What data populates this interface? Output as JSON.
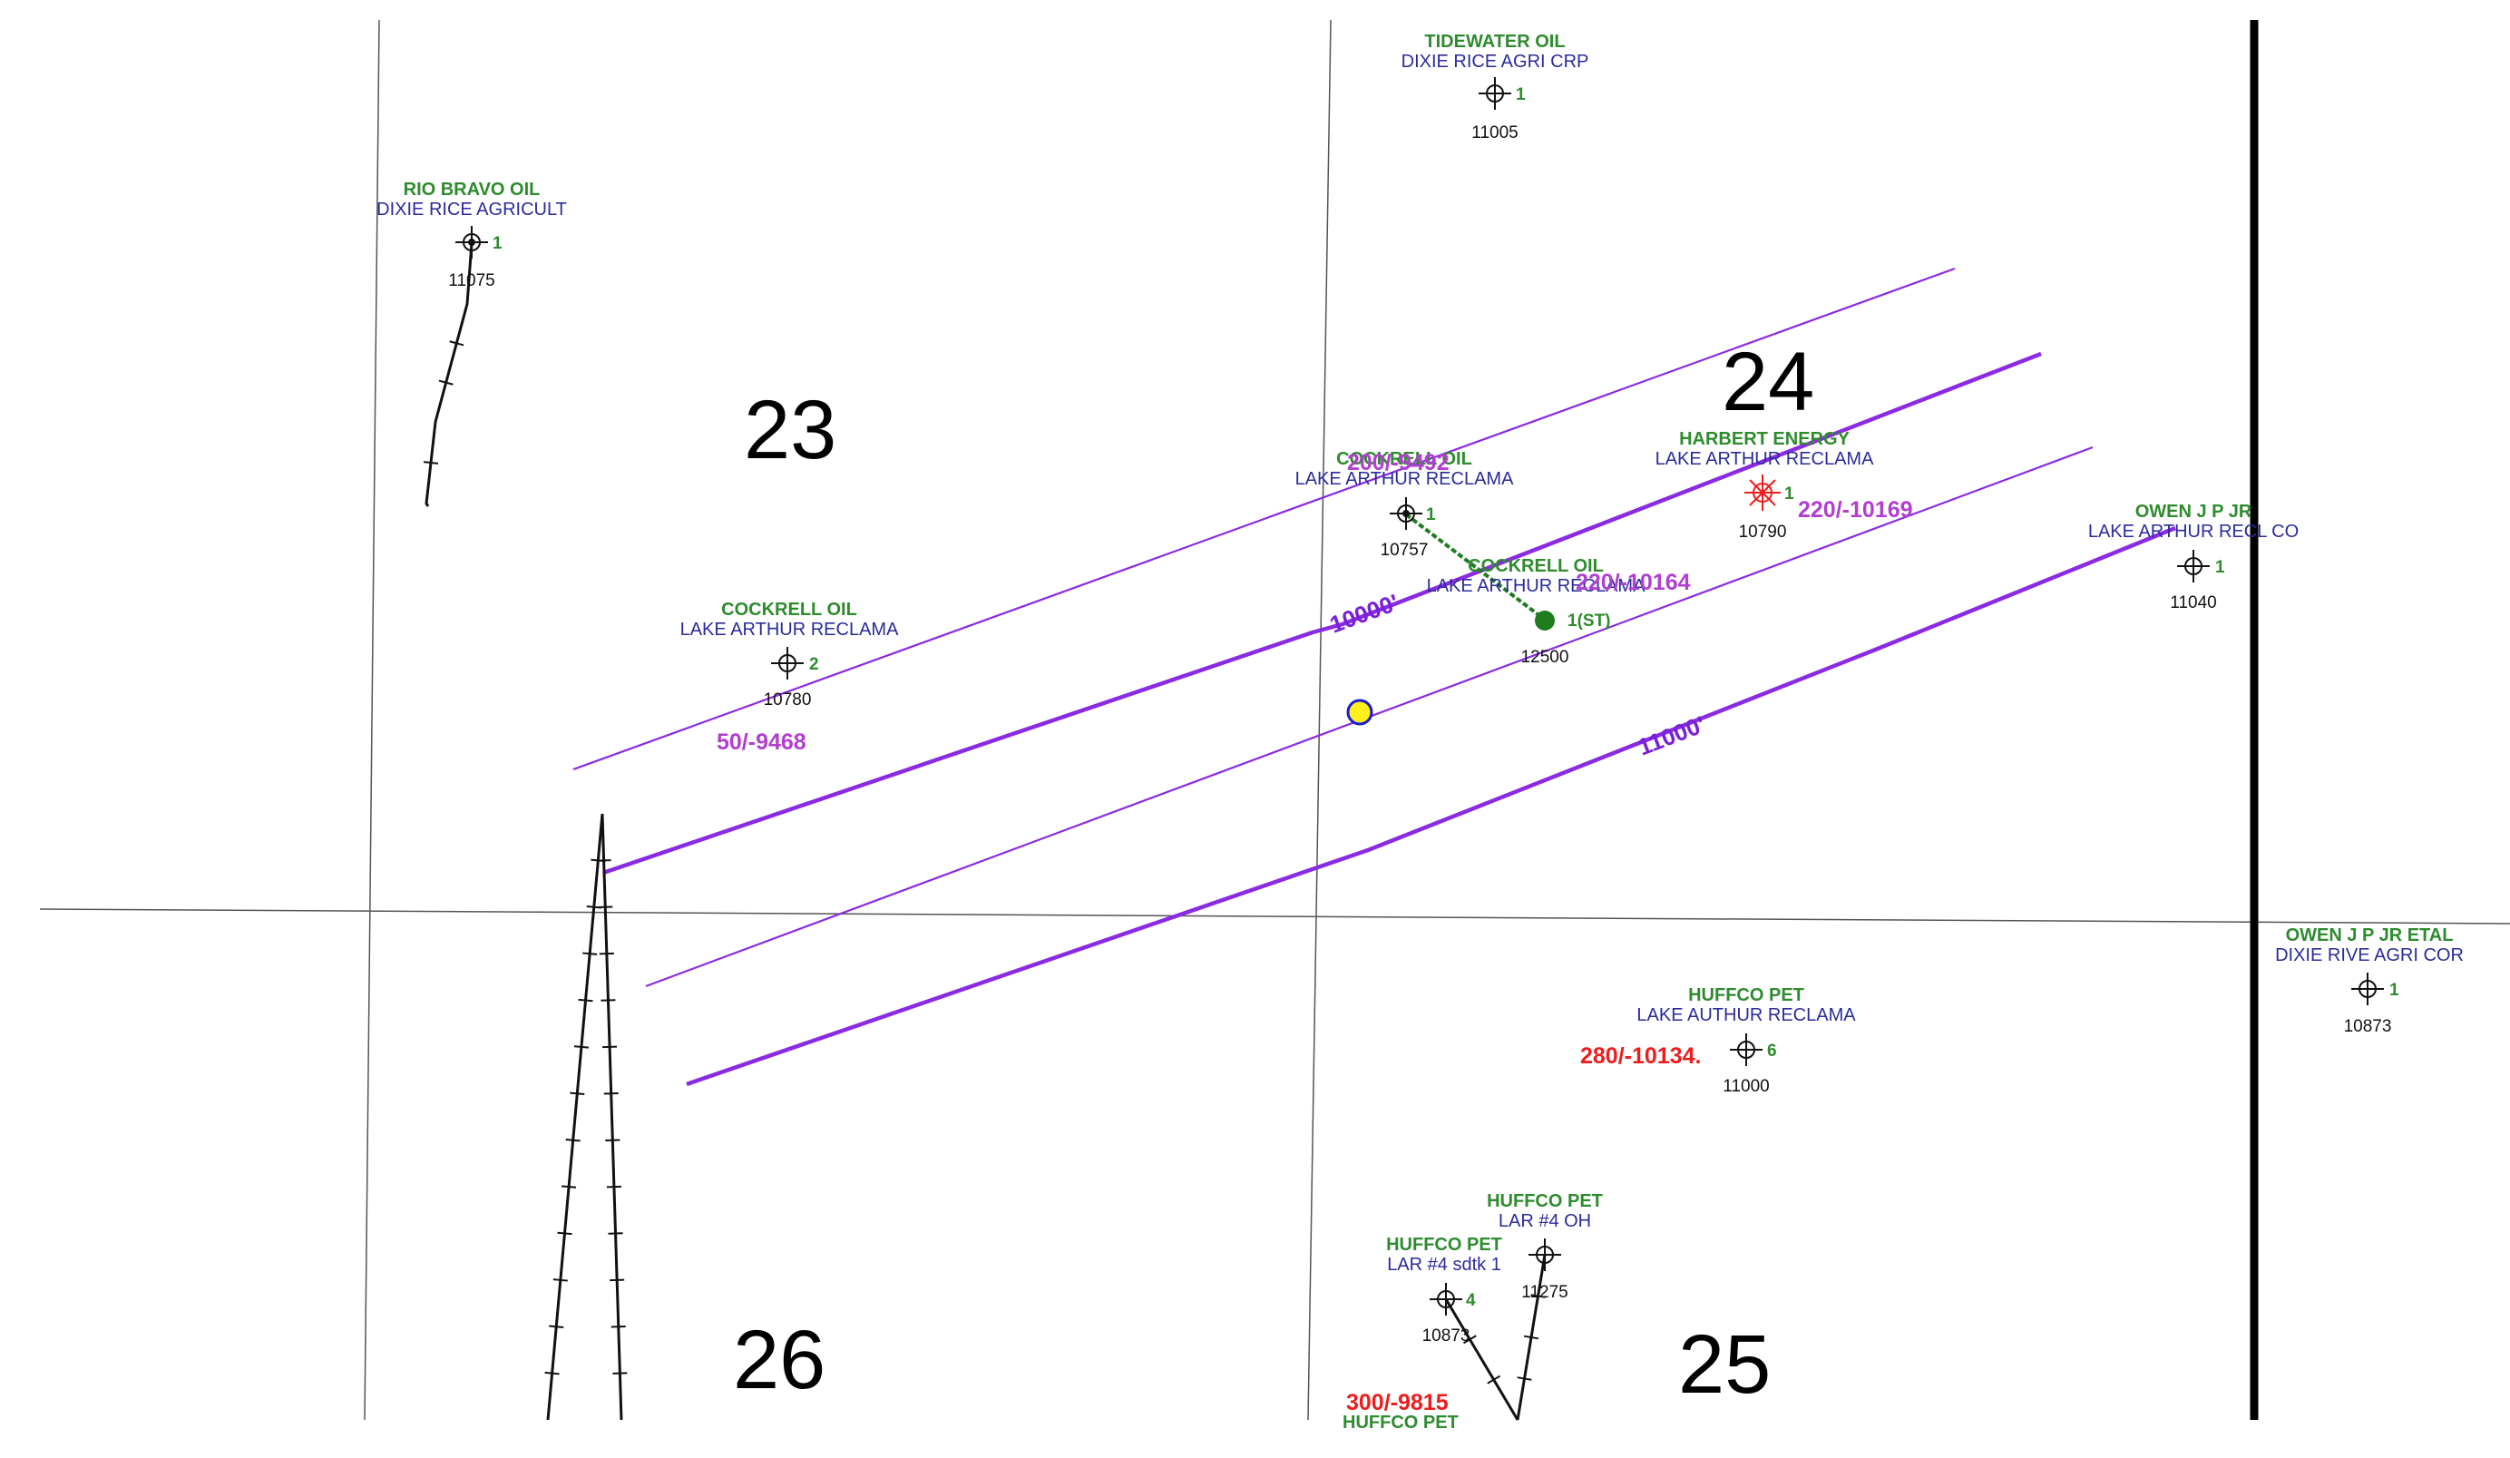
{
  "sections": [
    {
      "id": "23",
      "label": "23"
    },
    {
      "id": "24",
      "label": "24"
    },
    {
      "id": "25",
      "label": "25"
    },
    {
      "id": "26",
      "label": "26"
    }
  ],
  "contours": [
    {
      "id": "c10000",
      "label": "10000'"
    },
    {
      "id": "c11000",
      "label": "11000'"
    }
  ],
  "wells": [
    {
      "id": "tidewater",
      "operator": "TIDEWATER OIL",
      "lease": "DIXIE RICE AGRI CRP",
      "number": "1",
      "depth": "11005"
    },
    {
      "id": "riobravo",
      "operator": "RIO BRAVO OIL",
      "lease": "DIXIE RICE AGRICULT",
      "number": "1",
      "depth": "11075"
    },
    {
      "id": "cockrell1",
      "operator": "COCKRELL OIL",
      "lease": "LAKE ARTHUR RECLAMA",
      "number": "1",
      "depth": "10757"
    },
    {
      "id": "harbert",
      "operator": "HARBERT ENERGY",
      "lease": "LAKE ARTHUR RECLAMA",
      "number": "1",
      "depth": "10790"
    },
    {
      "id": "owen1",
      "operator": "OWEN J P JR",
      "lease": "LAKE ARTHUR RECL CO",
      "number": "1",
      "depth": "11040"
    },
    {
      "id": "cockrell2",
      "operator": "COCKRELL OIL",
      "lease": "LAKE ARTHUR RECLAMA",
      "number": "2",
      "depth": "10780"
    },
    {
      "id": "cockrellst",
      "operator": "COCKRELL OIL",
      "lease": "LAKE ARTHUR RECLAMA",
      "number": "1(ST)",
      "depth": "12500"
    },
    {
      "id": "owenetal",
      "operator": "OWEN J P JR ETAL",
      "lease": "DIXIE RIVE AGRI COR",
      "number": "1",
      "depth": "10873"
    },
    {
      "id": "huffco6",
      "operator": "HUFFCO PET",
      "lease": "LAKE AUTHUR RECLAMA",
      "number": "6",
      "depth": "11000"
    },
    {
      "id": "huffco4oh",
      "operator": "HUFFCO PET",
      "lease": "LAR #4 OH",
      "number": "",
      "depth": "11275"
    },
    {
      "id": "huffco4sd",
      "operator": "HUFFCO PET",
      "lease": "LAR #4 sdtk 1",
      "number": "4",
      "depth": "10873"
    },
    {
      "id": "huffcobottom",
      "operator": "HUFFCO PET",
      "lease": "",
      "number": "",
      "depth": ""
    }
  ],
  "values": [
    {
      "id": "v1",
      "text": "50/-9468",
      "color": "#b13fd0"
    },
    {
      "id": "v2",
      "text": "220/-10169",
      "color": "#b13fd0"
    },
    {
      "id": "v3",
      "text": "220/-10164",
      "color": "#b13fd0"
    },
    {
      "id": "v4",
      "text": "200/-9492",
      "color": "#b13fd0"
    },
    {
      "id": "v5",
      "text": "280/-10134.",
      "color": "#ee1c1c"
    },
    {
      "id": "v6",
      "text": "300/-9815",
      "color": "#ee1c1c"
    }
  ],
  "colors": {
    "contour": "#8a2be2",
    "operator": "#2e8b2e",
    "lease": "#2b2b9a",
    "posting_purple": "#b13fd0",
    "posting_red": "#ee1c1c",
    "marker_fill": "#ffef1a",
    "marker_stroke": "#1c1ccc",
    "dry_hole_red": "#ee1c1c"
  }
}
